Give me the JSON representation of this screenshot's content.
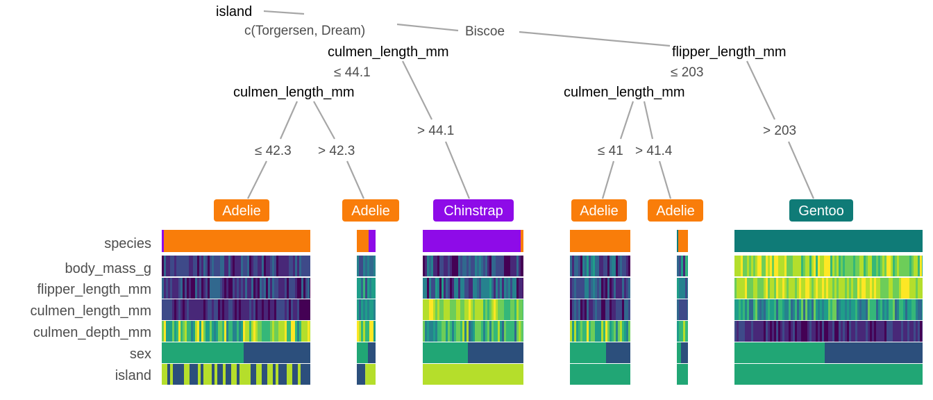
{
  "splits": {
    "root": "island",
    "left_inner": "culmen_length_mm",
    "left_left": "culmen_length_mm",
    "right_inner": "flipper_length_mm",
    "right_left": "culmen_length_mm"
  },
  "edges": {
    "root_left": "c(Torgersen, Dream)",
    "root_right": "Biscoe",
    "li_left": "≤ 44.1",
    "li_right": "> 44.1",
    "ll_left": "≤ 42.3",
    "ll_right": "> 42.3",
    "ri_left": "≤ 203",
    "ri_right": "> 203",
    "rl_left": "≤ 41",
    "rl_right": "> 41.4"
  },
  "leaves": [
    {
      "label": "Adelie",
      "color": "#F97D0A"
    },
    {
      "label": "Adelie",
      "color": "#F97D0A"
    },
    {
      "label": "Chinstrap",
      "color": "#8E0BE8"
    },
    {
      "label": "Adelie",
      "color": "#F97D0A"
    },
    {
      "label": "Adelie",
      "color": "#F97D0A"
    },
    {
      "label": "Gentoo",
      "color": "#0F7B77"
    }
  ],
  "heatmap_rows": [
    "species",
    "body_mass_g",
    "flipper_length_mm",
    "culmen_length_mm",
    "culmen_depth_mm",
    "sex",
    "island"
  ],
  "colors": {
    "adelie": "#F97D0A",
    "chinstrap": "#8E0BE8",
    "gentoo": "#0F7B77",
    "edge": "#a6a6a6",
    "viridis_low": "#3B1C6E",
    "viridis_mid": "#21918C",
    "viridis_high": "#FDE725"
  }
}
